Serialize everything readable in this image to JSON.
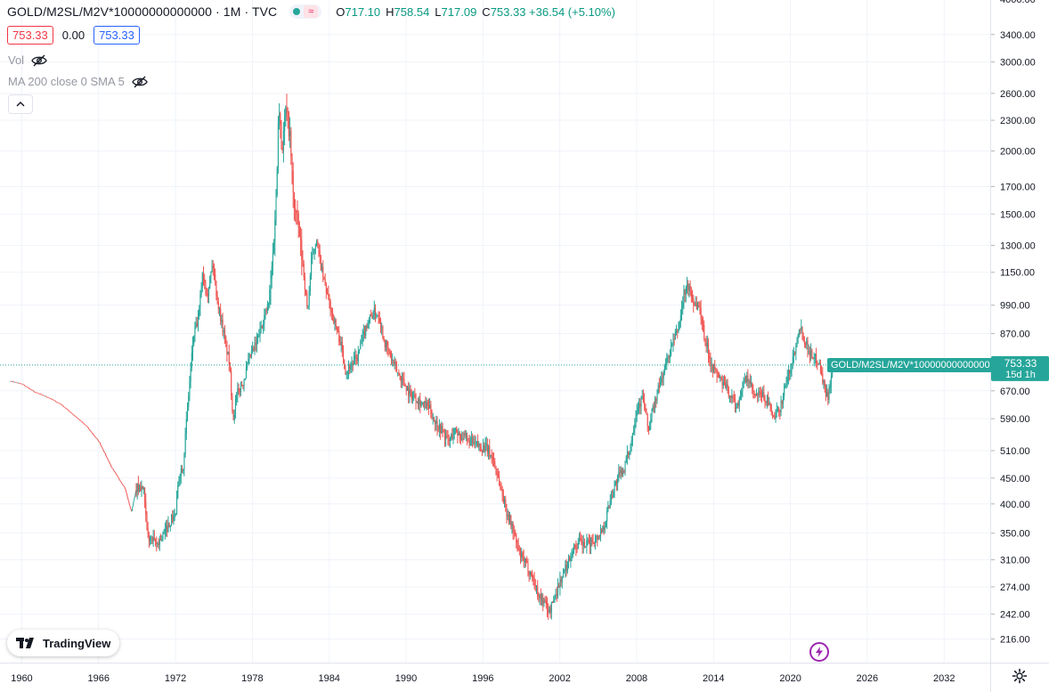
{
  "header": {
    "symbol": "GOLD/M2SL/M2V*10000000000000 · 1M · TVC",
    "ohlc": [
      {
        "key": "O",
        "value": "717.10"
      },
      {
        "key": "H",
        "value": "758.54"
      },
      {
        "key": "L",
        "value": "717.09"
      },
      {
        "key": "C",
        "value": "753.33 +36.54 (+5.10%)"
      }
    ],
    "bid": "753.33",
    "spread": "0.00",
    "ask": "753.33"
  },
  "indicators": {
    "vol": "Vol",
    "ma": "MA 200 close 0 SMA 5"
  },
  "branding": "TradingView",
  "price_label": {
    "name": "GOLD/M2SL/M2V*10000000000000",
    "value": "753.33",
    "countdown": "15d 1h"
  },
  "colors": {
    "up": "#26a69a",
    "down": "#ef5350",
    "current_line": "#26a69a",
    "grid": "#f0f3fa"
  },
  "chart_data": {
    "type": "candlestick",
    "scale": "log",
    "interval": "1M",
    "x_range": [
      1958.3,
      2035.6
    ],
    "y_range": [
      194,
      3980
    ],
    "grid": true,
    "y_ticks": [
      "4000.00",
      "3400.00",
      "3000.00",
      "2600.00",
      "2300.00",
      "2000.00",
      "1700.00",
      "1500.00",
      "1300.00",
      "1150.00",
      "990.00",
      "870.00",
      "670.00",
      "590.00",
      "510.00",
      "450.00",
      "400.00",
      "350.00",
      "310.00",
      "274.00",
      "242.00",
      "216.00"
    ],
    "x_ticks": [
      "1960",
      "1966",
      "1972",
      "1978",
      "1984",
      "1990",
      "1996",
      "2002",
      "2008",
      "2014",
      "2020",
      "2026",
      "2032"
    ],
    "current_price": 753.33,
    "series": [
      [
        1959.1,
        700
      ],
      [
        1960.0,
        690
      ],
      [
        1961.0,
        665
      ],
      [
        1962.0,
        650
      ],
      [
        1963.0,
        630
      ],
      [
        1964.0,
        600
      ],
      [
        1965.0,
        570
      ],
      [
        1966.0,
        530
      ],
      [
        1967.0,
        470
      ],
      [
        1968.0,
        430
      ],
      [
        1968.5,
        385
      ],
      [
        1968.9,
        432
      ],
      [
        1969.5,
        428
      ],
      [
        1969.8,
        345
      ],
      [
        1970.5,
        332
      ],
      [
        1971.0,
        345
      ],
      [
        1971.6,
        370
      ],
      [
        1972.0,
        380
      ],
      [
        1972.3,
        460
      ],
      [
        1972.6,
        480
      ],
      [
        1973.0,
        650
      ],
      [
        1973.4,
        860
      ],
      [
        1973.8,
        930
      ],
      [
        1974.1,
        1150
      ],
      [
        1974.5,
        1050
      ],
      [
        1974.9,
        1200
      ],
      [
        1975.3,
        1000
      ],
      [
        1975.8,
        860
      ],
      [
        1976.2,
        760
      ],
      [
        1976.5,
        590
      ],
      [
        1976.8,
        660
      ],
      [
        1977.3,
        700
      ],
      [
        1977.8,
        780
      ],
      [
        1978.3,
        830
      ],
      [
        1978.8,
        920
      ],
      [
        1979.3,
        1000
      ],
      [
        1979.6,
        1250
      ],
      [
        1979.9,
        1700
      ],
      [
        1980.05,
        2600
      ],
      [
        1980.3,
        2000
      ],
      [
        1980.6,
        2400
      ],
      [
        1980.9,
        2200
      ],
      [
        1981.2,
        1600
      ],
      [
        1981.6,
        1400
      ],
      [
        1982.0,
        1150
      ],
      [
        1982.3,
        960
      ],
      [
        1982.6,
        1200
      ],
      [
        1983.0,
        1350
      ],
      [
        1983.3,
        1200
      ],
      [
        1983.6,
        1100
      ],
      [
        1984.0,
        1000
      ],
      [
        1984.4,
        920
      ],
      [
        1984.9,
        830
      ],
      [
        1985.3,
        730
      ],
      [
        1985.8,
        760
      ],
      [
        1986.2,
        780
      ],
      [
        1986.6,
        850
      ],
      [
        1987.0,
        920
      ],
      [
        1987.5,
        960
      ],
      [
        1987.9,
        940
      ],
      [
        1988.3,
        840
      ],
      [
        1988.8,
        780
      ],
      [
        1989.3,
        730
      ],
      [
        1989.8,
        700
      ],
      [
        1990.3,
        660
      ],
      [
        1990.8,
        650
      ],
      [
        1991.3,
        630
      ],
      [
        1991.8,
        620
      ],
      [
        1992.3,
        580
      ],
      [
        1992.8,
        560
      ],
      [
        1993.3,
        530
      ],
      [
        1993.8,
        560
      ],
      [
        1994.3,
        545
      ],
      [
        1994.8,
        535
      ],
      [
        1995.3,
        525
      ],
      [
        1995.8,
        520
      ],
      [
        1996.3,
        515
      ],
      [
        1996.8,
        490
      ],
      [
        1997.3,
        440
      ],
      [
        1997.8,
        390
      ],
      [
        1998.3,
        360
      ],
      [
        1998.8,
        320
      ],
      [
        1999.3,
        305
      ],
      [
        1999.8,
        290
      ],
      [
        2000.3,
        265
      ],
      [
        2000.8,
        255
      ],
      [
        2001.2,
        245
      ],
      [
        2001.6,
        262
      ],
      [
        2002.0,
        280
      ],
      [
        2002.5,
        300
      ],
      [
        2003.0,
        325
      ],
      [
        2003.5,
        335
      ],
      [
        2004.0,
        330
      ],
      [
        2004.5,
        338
      ],
      [
        2005.0,
        345
      ],
      [
        2005.5,
        365
      ],
      [
        2006.0,
        415
      ],
      [
        2006.5,
        450
      ],
      [
        2007.0,
        470
      ],
      [
        2007.5,
        520
      ],
      [
        2008.0,
        620
      ],
      [
        2008.5,
        650
      ],
      [
        2008.9,
        560
      ],
      [
        2009.3,
        620
      ],
      [
        2009.8,
        690
      ],
      [
        2010.3,
        760
      ],
      [
        2010.8,
        830
      ],
      [
        2011.3,
        900
      ],
      [
        2011.7,
        1050
      ],
      [
        2012.0,
        1080
      ],
      [
        2012.5,
        1000
      ],
      [
        2012.9,
        980
      ],
      [
        2013.3,
        860
      ],
      [
        2013.8,
        760
      ],
      [
        2014.3,
        720
      ],
      [
        2014.8,
        690
      ],
      [
        2015.3,
        660
      ],
      [
        2015.8,
        620
      ],
      [
        2016.3,
        690
      ],
      [
        2016.7,
        710
      ],
      [
        2017.2,
        650
      ],
      [
        2017.7,
        660
      ],
      [
        2018.2,
        640
      ],
      [
        2018.7,
        590
      ],
      [
        2019.2,
        620
      ],
      [
        2019.6,
        690
      ],
      [
        2020.0,
        740
      ],
      [
        2020.4,
        820
      ],
      [
        2020.7,
        910
      ],
      [
        2021.0,
        860
      ],
      [
        2021.4,
        810
      ],
      [
        2021.8,
        780
      ],
      [
        2022.2,
        770
      ],
      [
        2022.6,
        690
      ],
      [
        2022.9,
        650
      ],
      [
        2023.2,
        717
      ],
      [
        2023.4,
        753.33
      ]
    ]
  }
}
